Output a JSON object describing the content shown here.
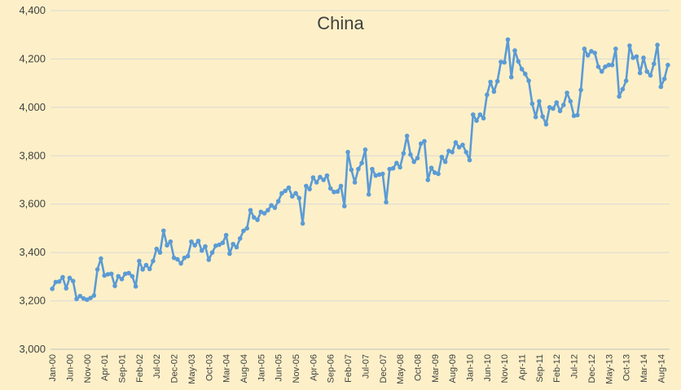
{
  "chart_data": {
    "type": "line",
    "title": "China",
    "xlabel": "",
    "ylabel": "",
    "ylim": [
      3000,
      4400
    ],
    "yticks": [
      3000,
      3200,
      3400,
      3600,
      3800,
      4000,
      4200,
      4400
    ],
    "ytick_labels": [
      "3,000",
      "3,200",
      "3,400",
      "3,600",
      "3,800",
      "4,000",
      "4,200",
      "4,400"
    ],
    "xtick_labels": [
      "Jan-00",
      "Jun-00",
      "Nov-00",
      "Apr-01",
      "Sep-01",
      "Feb-02",
      "Jul-02",
      "Dec-02",
      "May-03",
      "Oct-03",
      "Mar-04",
      "Aug-04",
      "Jan-05",
      "Jun-05",
      "Nov-05",
      "Apr-06",
      "Sep-06",
      "Feb-07",
      "Jul-07",
      "Dec-07",
      "May-08",
      "Oct-08",
      "Mar-09",
      "Aug-09",
      "Jan-10",
      "Jun-10",
      "Nov-10",
      "Apr-11",
      "Sep-11",
      "Feb-12",
      "Jul-12",
      "Dec-12",
      "May-13",
      "Oct-13",
      "Mar-14",
      "Aug-14"
    ],
    "grid": true,
    "legend": "none",
    "series_color": "#5b9bd5",
    "series": [
      {
        "x_start": "Jan-00",
        "frequency": "monthly",
        "values": [
          3250,
          3278,
          3280,
          3298,
          3252,
          3295,
          3282,
          3208,
          3220,
          3210,
          3205,
          3212,
          3222,
          3330,
          3375,
          3305,
          3310,
          3312,
          3262,
          3302,
          3290,
          3312,
          3315,
          3302,
          3260,
          3365,
          3330,
          3348,
          3332,
          3365,
          3415,
          3400,
          3490,
          3430,
          3445,
          3378,
          3372,
          3355,
          3378,
          3385,
          3445,
          3430,
          3448,
          3408,
          3425,
          3370,
          3400,
          3428,
          3432,
          3440,
          3472,
          3395,
          3435,
          3422,
          3458,
          3490,
          3500,
          3575,
          3545,
          3535,
          3568,
          3562,
          3575,
          3595,
          3585,
          3612,
          3645,
          3655,
          3668,
          3632,
          3645,
          3625,
          3520,
          3675,
          3662,
          3710,
          3690,
          3712,
          3700,
          3718,
          3665,
          3650,
          3652,
          3675,
          3592,
          3815,
          3742,
          3690,
          3745,
          3770,
          3825,
          3640,
          3745,
          3718,
          3722,
          3725,
          3608,
          3745,
          3748,
          3770,
          3752,
          3810,
          3882,
          3805,
          3775,
          3790,
          3850,
          3860,
          3700,
          3750,
          3730,
          3725,
          3795,
          3775,
          3820,
          3815,
          3855,
          3835,
          3845,
          3815,
          3782,
          3970,
          3945,
          3970,
          3955,
          4052,
          4105,
          4065,
          4108,
          4188,
          4186,
          4280,
          4125,
          4235,
          4190,
          4158,
          4138,
          4110,
          4015,
          3960,
          4025,
          3962,
          3930,
          4000,
          3995,
          4020,
          3985,
          4010,
          4060,
          4025,
          3965,
          3968,
          4072,
          4242,
          4215,
          4232,
          4225,
          4168,
          4148,
          4168,
          4175,
          4175,
          4242,
          4045,
          4075,
          4110,
          4255,
          4205,
          4210,
          4142,
          4205,
          4148,
          4132,
          4180,
          4258,
          4085,
          4118,
          4175
        ]
      }
    ]
  }
}
